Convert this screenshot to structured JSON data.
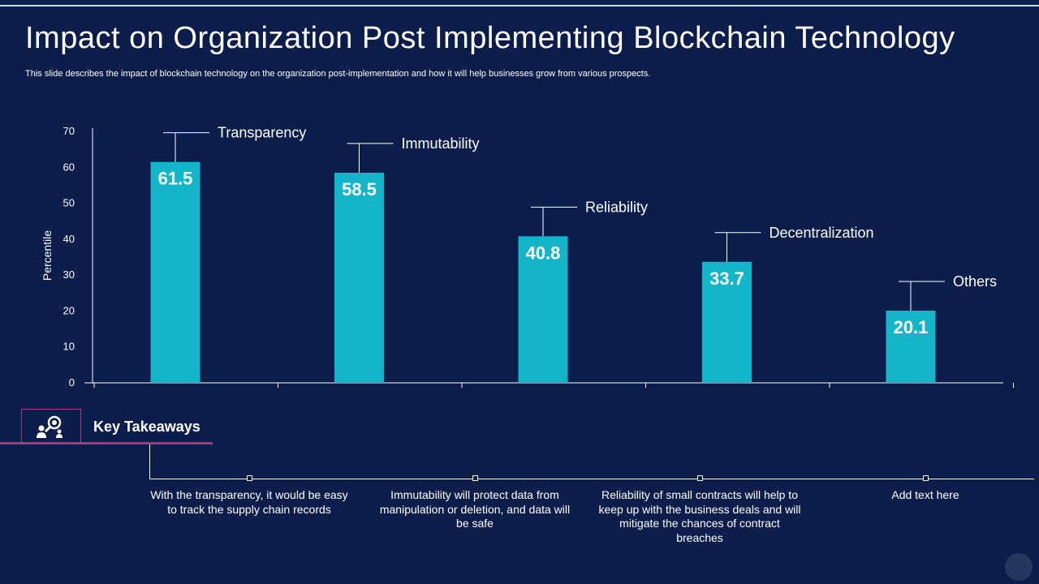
{
  "title": "Impact on Organization Post Implementing Blockchain Technology",
  "subtitle": "This slide describes the impact of blockchain technology on the organization post-implementation and how it will help businesses grow from various prospects.",
  "colors": {
    "background": "#0b1d4b",
    "bar": "#12b6c8",
    "accent": "#b0357a",
    "text": "#ffffff"
  },
  "chart_data": {
    "type": "bar",
    "categories": [
      "Transparency",
      "Immutability",
      "Reliability",
      "Decentralization",
      "Others"
    ],
    "values": [
      61.5,
      58.5,
      40.8,
      33.7,
      20.1
    ],
    "value_labels": [
      "61.5",
      "58.5",
      "40.8",
      "33.7",
      "20.1"
    ],
    "ylabel": "Percentile",
    "xlabel": "",
    "ylim": [
      0,
      70
    ],
    "yticks": [
      0,
      10,
      20,
      30,
      40,
      50,
      60,
      70
    ],
    "ytick_labels": [
      "0",
      "10",
      "20",
      "30",
      "40",
      "50",
      "60",
      "70"
    ],
    "grid": false,
    "label_placement": "callout above each bar"
  },
  "key_takeaways": {
    "label": "Key Takeaways",
    "icon": "search-person-icon",
    "items": [
      "With the transparency, it would be easy to track the supply chain records",
      "Immutability will protect data from manipulation or deletion, and data will be safe",
      "Reliability of small contracts will help to keep up with the business deals and will mitigate the chances of contract breaches",
      "Add text here"
    ]
  }
}
